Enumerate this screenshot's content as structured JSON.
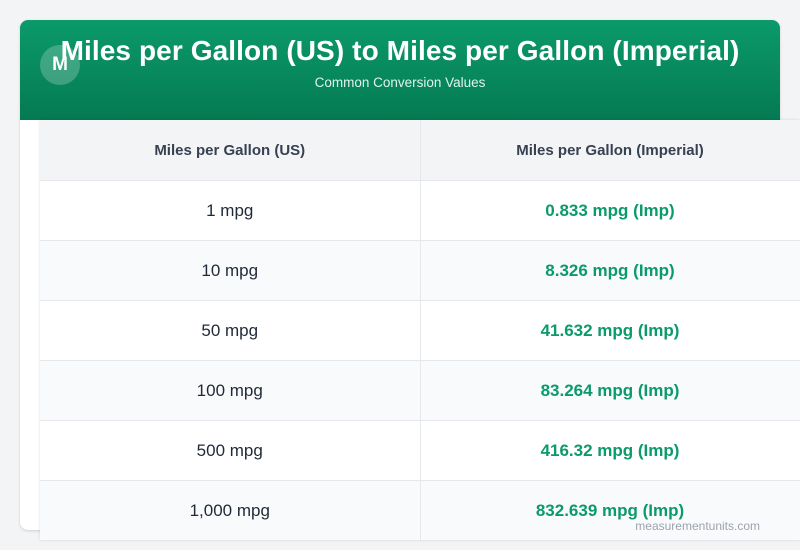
{
  "header": {
    "title": "Miles per Gallon (US) to Miles per Gallon (Imperial)",
    "subtitle": "Common Conversion Values",
    "logo_letter": "M"
  },
  "table": {
    "columns": [
      "Miles per Gallon (US)",
      "Miles per Gallon (Imperial)"
    ],
    "rows": [
      [
        "1 mpg",
        "0.833 mpg (Imp)"
      ],
      [
        "10 mpg",
        "8.326 mpg (Imp)"
      ],
      [
        "50 mpg",
        "41.632 mpg (Imp)"
      ],
      [
        "100 mpg",
        "83.264 mpg (Imp)"
      ],
      [
        "500 mpg",
        "416.32 mpg (Imp)"
      ],
      [
        "1,000 mpg",
        "832.639 mpg (Imp)"
      ]
    ]
  },
  "footer": {
    "watermark": "measurementunits.com"
  },
  "colors": {
    "brand": "#0b9a6a",
    "brand_dark": "#057a52"
  }
}
